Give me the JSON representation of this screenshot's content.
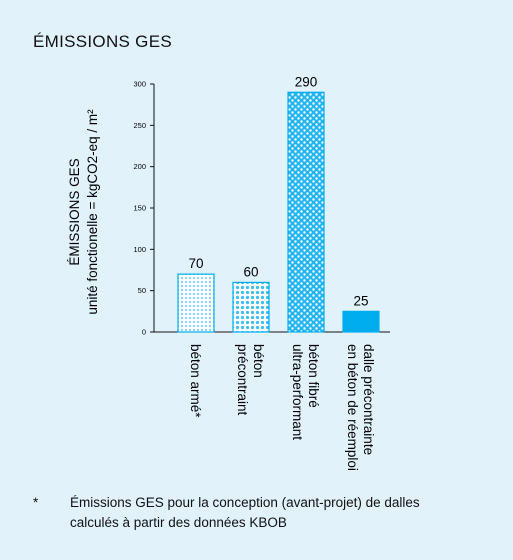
{
  "title": "ÉMISSIONS GES",
  "chart_data": {
    "type": "bar",
    "ylabel_line1": "ÉMISSIONS GES",
    "ylabel_line2": "unité fonctionelle = kgCO2-eq / m²",
    "ylim": [
      0,
      300
    ],
    "yticks": [
      0,
      50,
      100,
      150,
      200,
      250,
      300
    ],
    "categories": [
      [
        "béton armé*"
      ],
      [
        "béton",
        "précontraint"
      ],
      [
        "béton fibré",
        "ultra-performant"
      ],
      [
        "dalle précontrainte",
        "en béton de réemploi"
      ]
    ],
    "values": [
      70,
      60,
      290,
      25
    ],
    "data_labels": [
      "70",
      "60",
      "290",
      "25"
    ],
    "fills": [
      "dots-light",
      "dots-medium",
      "dots-dense",
      "solid"
    ],
    "colors": {
      "accent": "#00aeef",
      "background": "#e1f2fb",
      "dot": "#7fd0f2"
    },
    "grid": false
  },
  "footnote": {
    "marker": "*",
    "lines": [
      "Émissions GES pour la conception (avant-projet) de dalles",
      "calculés à partir des données KBOB"
    ]
  }
}
